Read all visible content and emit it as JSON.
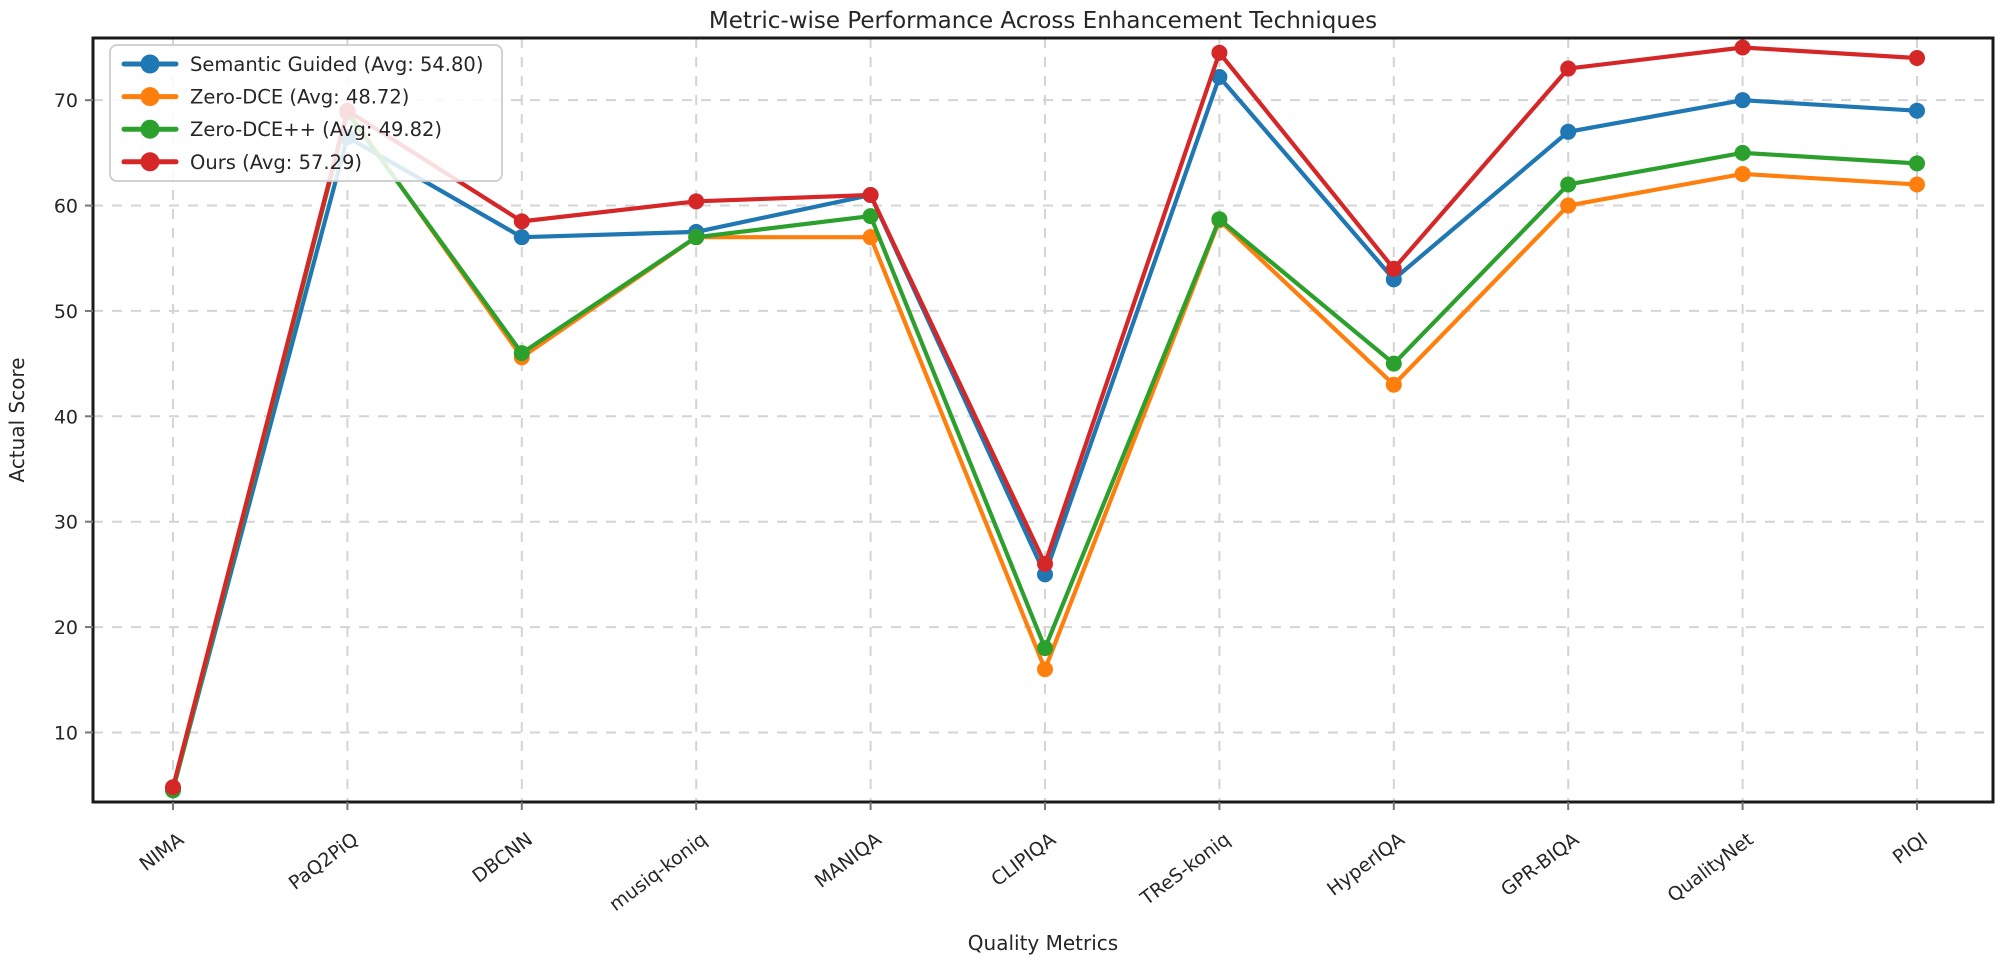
{
  "chart_data": {
    "type": "line",
    "title": "Metric-wise Performance Across Enhancement Techniques",
    "xlabel": "Quality Metrics",
    "ylabel": "Actual Score",
    "categories": [
      "NIMA",
      "PaQ2PiQ",
      "DBCNN",
      "musiq-koniq",
      "MANIQA",
      "CLIPIQA",
      "TReS-koniq",
      "HyperIQA",
      "GPR-BIQA",
      "QualityNet",
      "PIQI"
    ],
    "yticks": [
      10,
      20,
      30,
      40,
      50,
      60,
      70
    ],
    "ylim": [
      3.4,
      75.9
    ],
    "grid": true,
    "grid_style": "dashed",
    "legend_position": "upper-left",
    "series": [
      {
        "name": "Semantic Guided",
        "avg": "54.80",
        "legend_label": "Semantic Guided (Avg: 54.80)",
        "color": "#1f77b4",
        "values": [
          4.6,
          66.5,
          57.0,
          57.5,
          61.0,
          25.0,
          72.2,
          53.0,
          67.0,
          70.0,
          69.0
        ]
      },
      {
        "name": "Zero-DCE",
        "avg": "48.72",
        "legend_label": "Zero-DCE (Avg: 48.72)",
        "color": "#ff7f0e",
        "values": [
          4.7,
          69.0,
          45.6,
          57.0,
          57.0,
          16.0,
          58.6,
          43.0,
          60.0,
          63.0,
          62.0
        ]
      },
      {
        "name": "Zero-DCE++",
        "avg": "49.82",
        "legend_label": "Zero-DCE++ (Avg: 49.82)",
        "color": "#2ca02c",
        "values": [
          4.5,
          68.8,
          46.0,
          57.0,
          59.0,
          18.0,
          58.7,
          45.0,
          62.0,
          65.0,
          64.0
        ]
      },
      {
        "name": "Ours",
        "avg": "57.29",
        "legend_label": "Ours (Avg: 57.29)",
        "color": "#d62728",
        "values": [
          4.8,
          69.0,
          58.5,
          60.4,
          61.0,
          26.0,
          74.5,
          54.0,
          73.0,
          75.0,
          74.0
        ]
      }
    ]
  }
}
